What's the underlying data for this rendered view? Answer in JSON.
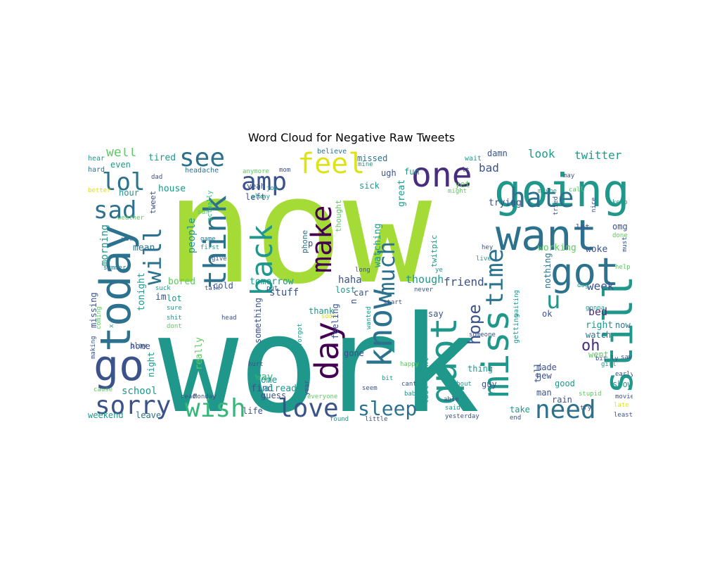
{
  "title": "Word Cloud for Negative Raw Tweets",
  "palette": {
    "lime": "#a5db36",
    "teal": "#1f988b",
    "blue": "#2c728e",
    "indigo": "#3b528b",
    "purple": "#472d7b",
    "dark": "#440154",
    "green": "#35b779",
    "yellow": "#dde318",
    "sea": "#26a784",
    "light": "#5ec962"
  },
  "words": [
    {
      "text": "now",
      "color": "lime"
    },
    {
      "text": "work",
      "color": "teal"
    },
    {
      "text": "going",
      "color": "teal"
    },
    {
      "text": "want",
      "color": "blue"
    },
    {
      "text": "one",
      "color": "purple"
    },
    {
      "text": "got",
      "color": "blue"
    },
    {
      "text": "know",
      "color": "blue"
    },
    {
      "text": "day",
      "color": "dark"
    },
    {
      "text": "quot",
      "color": "teal"
    },
    {
      "text": "miss",
      "color": "teal"
    },
    {
      "text": "still",
      "color": "teal"
    },
    {
      "text": "today",
      "color": "blue"
    },
    {
      "text": "go",
      "color": "indigo"
    },
    {
      "text": "wish",
      "color": "green"
    },
    {
      "text": "love",
      "color": "indigo"
    },
    {
      "text": "need",
      "color": "blue"
    },
    {
      "text": "sorry",
      "color": "indigo"
    },
    {
      "text": "make",
      "color": "dark"
    },
    {
      "text": "back",
      "color": "teal"
    },
    {
      "text": "think",
      "color": "blue"
    },
    {
      "text": "feel",
      "color": "yellow"
    },
    {
      "text": "amp",
      "color": "indigo"
    },
    {
      "text": "see",
      "color": "blue"
    },
    {
      "text": "lol",
      "color": "blue"
    },
    {
      "text": "sad",
      "color": "blue"
    },
    {
      "text": "will",
      "color": "blue"
    },
    {
      "text": "hate",
      "color": "blue"
    },
    {
      "text": "time",
      "color": "blue"
    },
    {
      "text": "much",
      "color": "blue"
    },
    {
      "text": "sleep",
      "color": "blue"
    },
    {
      "text": "u",
      "color": "teal"
    },
    {
      "text": "hope",
      "color": "indigo"
    },
    {
      "text": "oh",
      "color": "purple"
    },
    {
      "text": "well",
      "color": "light"
    },
    {
      "text": "tired",
      "color": "teal"
    },
    {
      "text": "look",
      "color": "teal"
    },
    {
      "text": "twitter",
      "color": "teal"
    },
    {
      "text": "bad",
      "color": "indigo"
    },
    {
      "text": "missed",
      "color": "blue"
    },
    {
      "text": "damn",
      "color": "indigo"
    },
    {
      "text": "house",
      "color": "teal"
    },
    {
      "text": "headache",
      "color": "blue"
    },
    {
      "text": "hear",
      "color": "teal"
    },
    {
      "text": "even",
      "color": "teal"
    },
    {
      "text": "hard",
      "color": "blue"
    },
    {
      "text": "believe",
      "color": "blue"
    },
    {
      "text": "anymore",
      "color": "light"
    },
    {
      "text": "mom",
      "color": "indigo"
    },
    {
      "text": "mine",
      "color": "teal"
    },
    {
      "text": "ugh",
      "color": "indigo"
    },
    {
      "text": "fun",
      "color": "teal"
    },
    {
      "text": "wait",
      "color": "teal"
    },
    {
      "text": "lt",
      "color": "indigo"
    },
    {
      "text": "may",
      "color": "indigo"
    },
    {
      "text": "better",
      "color": "yellow"
    },
    {
      "text": "hour",
      "color": "teal"
    },
    {
      "text": "dad",
      "color": "indigo"
    },
    {
      "text": "tweet",
      "color": "indigo"
    },
    {
      "text": "yeah",
      "color": "indigo"
    },
    {
      "text": "left",
      "color": "indigo"
    },
    {
      "text": "sick",
      "color": "teal"
    },
    {
      "text": "yet",
      "color": "light"
    },
    {
      "text": "might",
      "color": "light"
    },
    {
      "text": "maybe",
      "color": "teal"
    },
    {
      "text": "call",
      "color": "light"
    },
    {
      "text": "great",
      "color": "teal"
    },
    {
      "text": "trying",
      "color": "indigo"
    },
    {
      "text": "weather",
      "color": "light"
    },
    {
      "text": "sun",
      "color": "light"
    },
    {
      "text": "job",
      "color": "teal"
    },
    {
      "text": "alway",
      "color": "teal"
    },
    {
      "text": "actually",
      "color": "green"
    },
    {
      "text": "thought",
      "color": "light"
    },
    {
      "text": "tried",
      "color": "indigo"
    },
    {
      "text": "nice",
      "color": "indigo"
    },
    {
      "text": "keep",
      "color": "teal"
    },
    {
      "text": "morning",
      "color": "teal"
    },
    {
      "text": "people",
      "color": "teal"
    },
    {
      "text": "game",
      "color": "blue"
    },
    {
      "text": "first",
      "color": "teal"
    },
    {
      "text": "give",
      "color": "indigo"
    },
    {
      "text": "p",
      "color": "indigo"
    },
    {
      "text": "phone",
      "color": "blue"
    },
    {
      "text": "watching",
      "color": "teal"
    },
    {
      "text": "twitpic",
      "color": "teal"
    },
    {
      "text": "let",
      "color": "indigo"
    },
    {
      "text": "omg",
      "color": "indigo"
    },
    {
      "text": "done",
      "color": "light"
    },
    {
      "text": "mean",
      "color": "blue"
    },
    {
      "text": "wow",
      "color": "blue"
    },
    {
      "text": "summer",
      "color": "blue"
    },
    {
      "text": "tomorrow",
      "color": "teal"
    },
    {
      "text": "haha",
      "color": "indigo"
    },
    {
      "text": "though",
      "color": "teal"
    },
    {
      "text": "friend",
      "color": "indigo"
    },
    {
      "text": "working",
      "color": "light"
    },
    {
      "text": "woke",
      "color": "indigo"
    },
    {
      "text": "hey",
      "color": "indigo"
    },
    {
      "text": "live",
      "color": "teal"
    },
    {
      "text": "must",
      "color": "indigo"
    },
    {
      "text": "help",
      "color": "light"
    },
    {
      "text": "long",
      "color": "indigo"
    },
    {
      "text": "ye",
      "color": "teal"
    },
    {
      "text": "lost",
      "color": "teal"
    },
    {
      "text": "never",
      "color": "indigo"
    },
    {
      "text": "nothing",
      "color": "blue"
    },
    {
      "text": "week",
      "color": "indigo"
    },
    {
      "text": "dog",
      "color": "teal"
    },
    {
      "text": "tonight",
      "color": "teal"
    },
    {
      "text": "bored",
      "color": "light"
    },
    {
      "text": "cold",
      "color": "indigo"
    },
    {
      "text": "suck",
      "color": "teal"
    },
    {
      "text": "talk",
      "color": "indigo"
    },
    {
      "text": "put",
      "color": "indigo"
    },
    {
      "text": "stuff",
      "color": "indigo"
    },
    {
      "text": "car",
      "color": "indigo"
    },
    {
      "text": "n",
      "color": "indigo"
    },
    {
      "text": "start",
      "color": "indigo"
    },
    {
      "text": "im",
      "color": "indigo"
    },
    {
      "text": "ok",
      "color": "indigo"
    },
    {
      "text": "bed",
      "color": "purple"
    },
    {
      "text": "missing",
      "color": "indigo"
    },
    {
      "text": "lot",
      "color": "teal"
    },
    {
      "text": "sure",
      "color": "teal"
    },
    {
      "text": "shit",
      "color": "teal"
    },
    {
      "text": "dont",
      "color": "light"
    },
    {
      "text": "x",
      "color": "teal"
    },
    {
      "text": "coming",
      "color": "light"
    },
    {
      "text": "thank",
      "color": "teal"
    },
    {
      "text": "soon",
      "color": "yellow"
    },
    {
      "text": "say",
      "color": "indigo"
    },
    {
      "text": "right",
      "color": "teal"
    },
    {
      "text": "gonna",
      "color": "teal"
    },
    {
      "text": "now",
      "color": "blue"
    },
    {
      "text": "watch",
      "color": "blue"
    },
    {
      "text": "something",
      "color": "indigo"
    },
    {
      "text": "head",
      "color": "indigo"
    },
    {
      "text": "waiting",
      "color": "teal"
    },
    {
      "text": "someone",
      "color": "indigo"
    },
    {
      "text": "getting",
      "color": "teal"
    },
    {
      "text": "feeling",
      "color": "indigo"
    },
    {
      "text": "wanted",
      "color": "teal"
    },
    {
      "text": "forgot",
      "color": "teal"
    },
    {
      "text": "went",
      "color": "light"
    },
    {
      "text": "play",
      "color": "indigo"
    },
    {
      "text": "home",
      "color": "indigo"
    },
    {
      "text": "making",
      "color": "indigo"
    },
    {
      "text": "night",
      "color": "teal"
    },
    {
      "text": "really",
      "color": "light"
    },
    {
      "text": "hurt",
      "color": "indigo"
    },
    {
      "text": "happy",
      "color": "light"
    },
    {
      "text": "thing",
      "color": "teal"
    },
    {
      "text": "made",
      "color": "indigo"
    },
    {
      "text": "new",
      "color": "indigo"
    },
    {
      "text": "guy",
      "color": "indigo"
    },
    {
      "text": "bit ly",
      "color": "indigo"
    },
    {
      "text": "saw",
      "color": "indigo"
    },
    {
      "text": "girl",
      "color": "teal"
    },
    {
      "text": "early",
      "color": "indigo"
    },
    {
      "text": "way",
      "color": "green"
    },
    {
      "text": "gone",
      "color": "indigo"
    },
    {
      "text": "school",
      "color": "teal"
    },
    {
      "text": "find",
      "color": "indigo"
    },
    {
      "text": "come",
      "color": "teal"
    },
    {
      "text": "cause",
      "color": "light"
    },
    {
      "text": "already",
      "color": "teal"
    },
    {
      "text": "good",
      "color": "teal"
    },
    {
      "text": "tell",
      "color": "indigo"
    },
    {
      "text": "show",
      "color": "teal"
    },
    {
      "text": "movie",
      "color": "indigo"
    },
    {
      "text": "Monday",
      "color": "indigo"
    },
    {
      "text": "read",
      "color": "indigo"
    },
    {
      "text": "everyone",
      "color": "light"
    },
    {
      "text": "year",
      "color": "indigo"
    },
    {
      "text": "seem",
      "color": "indigo"
    },
    {
      "text": "bit",
      "color": "teal"
    },
    {
      "text": "cant",
      "color": "indigo"
    },
    {
      "text": "without",
      "color": "teal"
    },
    {
      "text": "man",
      "color": "indigo"
    },
    {
      "text": "rain",
      "color": "indigo"
    },
    {
      "text": "stupid",
      "color": "light"
    },
    {
      "text": "late",
      "color": "yellow"
    },
    {
      "text": "guess",
      "color": "indigo"
    },
    {
      "text": "baby",
      "color": "teal"
    },
    {
      "text": "able",
      "color": "indigo"
    },
    {
      "text": "take",
      "color": "teal"
    },
    {
      "text": "least",
      "color": "indigo"
    },
    {
      "text": "weekend",
      "color": "teal"
    },
    {
      "text": "leave",
      "color": "blue"
    },
    {
      "text": "life",
      "color": "indigo"
    },
    {
      "text": "found",
      "color": "teal"
    },
    {
      "text": "little",
      "color": "indigo"
    },
    {
      "text": "last night",
      "color": "teal"
    },
    {
      "text": "said",
      "color": "teal"
    },
    {
      "text": "yesterday",
      "color": "indigo"
    },
    {
      "text": "end",
      "color": "indigo"
    },
    {
      "text": "try",
      "color": "indigo"
    }
  ]
}
